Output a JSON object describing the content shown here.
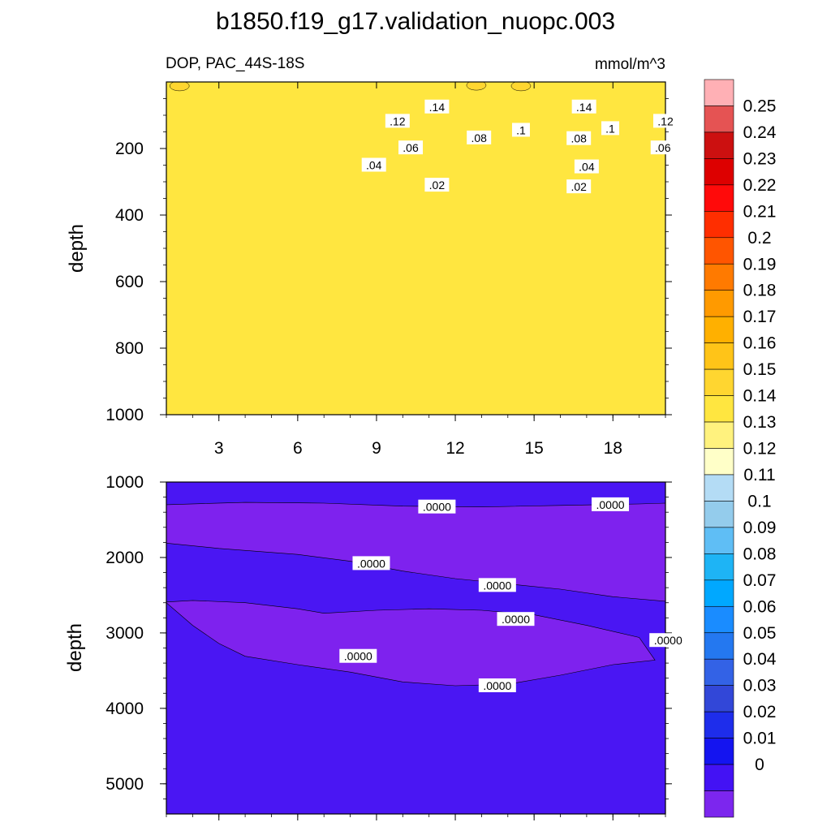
{
  "title": "b1850.f19_g17.validation_nuopc.003",
  "left_string": "DOP, PAC_44S-18S",
  "right_string": "mmol/m^3",
  "chart_data": [
    {
      "type": "contour",
      "panel": "upper",
      "ylabel": "depth",
      "xlim": [
        1,
        20
      ],
      "ylim": [
        0,
        1000
      ],
      "y_reversed": true,
      "xticks": [
        "3",
        "6",
        "9",
        "12",
        "15",
        "18"
      ],
      "yticks": [
        "200",
        "400",
        "600",
        "800",
        "1000"
      ],
      "contour_labels": [
        {
          "text": ".14",
          "x": 11.3,
          "depth": 75
        },
        {
          "text": ".14",
          "x": 16.9,
          "depth": 75
        },
        {
          "text": ".12",
          "x": 9.8,
          "depth": 118
        },
        {
          "text": ".12",
          "x": 20.0,
          "depth": 118
        },
        {
          "text": ".1",
          "x": 14.5,
          "depth": 145
        },
        {
          "text": ".1",
          "x": 17.9,
          "depth": 140
        },
        {
          "text": ".08",
          "x": 12.9,
          "depth": 168
        },
        {
          "text": ".08",
          "x": 16.7,
          "depth": 170
        },
        {
          "text": ".06",
          "x": 10.3,
          "depth": 198
        },
        {
          "text": ".06",
          "x": 19.9,
          "depth": 198
        },
        {
          "text": ".04",
          "x": 8.9,
          "depth": 250
        },
        {
          "text": ".04",
          "x": 17.0,
          "depth": 255
        },
        {
          "text": ".02",
          "x": 11.3,
          "depth": 310
        },
        {
          "text": ".02",
          "x": 16.7,
          "depth": 315
        }
      ]
    },
    {
      "type": "contour",
      "panel": "lower",
      "ylabel": "depth",
      "xlim": [
        1,
        20
      ],
      "ylim": [
        1000,
        5400
      ],
      "y_reversed": true,
      "yticks": [
        "1000",
        "2000",
        "3000",
        "4000",
        "5000"
      ],
      "contour_labels": [
        {
          "text": ".0000",
          "x": 11.3,
          "depth": 1330
        },
        {
          "text": ".0000",
          "x": 17.9,
          "depth": 1300
        },
        {
          "text": ".0000",
          "x": 8.8,
          "depth": 2080
        },
        {
          "text": ".0000",
          "x": 13.6,
          "depth": 2370
        },
        {
          "text": ".0000",
          "x": 14.3,
          "depth": 2820
        },
        {
          "text": ".0000",
          "x": 20.1,
          "depth": 3100
        },
        {
          "text": ".0000",
          "x": 8.3,
          "depth": 3310
        },
        {
          "text": ".0000",
          "x": 13.6,
          "depth": 3700
        }
      ]
    }
  ],
  "colorbar": {
    "labels": [
      "0.25",
      "0.24",
      "0.23",
      "0.22",
      "0.21",
      "0.2",
      "0.19",
      "0.18",
      "0.17",
      "0.16",
      "0.15",
      "0.14",
      "0.13",
      "0.12",
      "0.11",
      "0.1",
      "0.09",
      "0.08",
      "0.07",
      "0.06",
      "0.05",
      "0.04",
      "0.03",
      "0.02",
      "0.01",
      "0"
    ],
    "colors_top_to_bottom": [
      "#FFB0B5",
      "#E55353",
      "#CC1010",
      "#DD0000",
      "#FF0A0A",
      "#FF2E00",
      "#FF5500",
      "#FF7A00",
      "#FF9A00",
      "#FFB000",
      "#FFC418",
      "#FFD630",
      "#FFE640",
      "#FFF27E",
      "#FFFFC8",
      "#B4DCF5",
      "#94CCEC",
      "#5FBEF5",
      "#1EB4F5",
      "#00A8FF",
      "#1A8CFF",
      "#2478F0",
      "#3362E6",
      "#3247D8",
      "#1E2DEB",
      "#1414F0",
      "#4312F4",
      "#7C26EE"
    ]
  },
  "colors": {
    "deep": "#4A16F3",
    "purple": "#7E22EE",
    "c01": "#1414F0",
    "c02": "#1E2DEB",
    "c03": "#3247D8",
    "c04": "#3362E6",
    "c05": "#2478F0",
    "c06": "#1A8CFF",
    "c07": "#00A8FF",
    "c08": "#1EB4F5",
    "c09": "#5FBEF5",
    "c10": "#94CCEC",
    "c11": "#B4DCF5",
    "c12": "#FFFFC8",
    "c13": "#FFF27E",
    "c14": "#FFE640",
    "c15": "#FFD630"
  }
}
